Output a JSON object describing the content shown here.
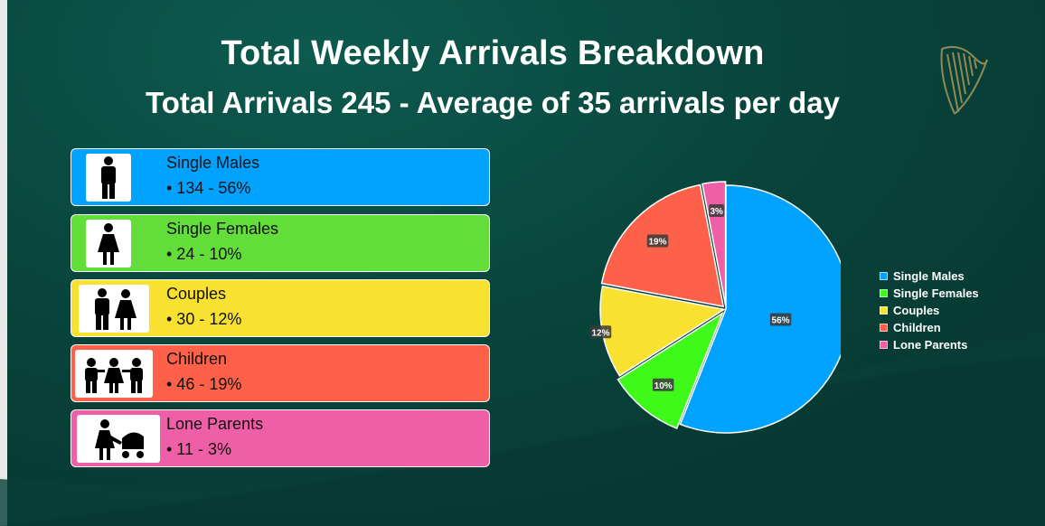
{
  "header": {
    "title": "Total Weekly Arrivals Breakdown",
    "subtitle": "Total Arrivals 245 - Average of 35 arrivals per day"
  },
  "categories": [
    {
      "label": "Single Males",
      "value": "• 134 - 56%",
      "color": "#00a2ff",
      "icon": "single-male-icon"
    },
    {
      "label": "Single Females",
      "value": "• 24 - 10%",
      "color": "#63dd3a",
      "icon": "single-female-icon"
    },
    {
      "label": "Couples",
      "value": "• 30 - 12%",
      "color": "#f8e131",
      "icon": "couple-icon"
    },
    {
      "label": "Children",
      "value": "• 46 - 19%",
      "color": "#fe6149",
      "icon": "children-icon"
    },
    {
      "label": "Lone Parents",
      "value": "• 11 - 3%",
      "color": "#ee5fa7",
      "icon": "lone-parent-icon"
    }
  ],
  "chart_data": {
    "type": "pie",
    "categories": [
      "Single Males",
      "Single Females",
      "Couples",
      "Children",
      "Lone Parents"
    ],
    "values": [
      56,
      10,
      12,
      19,
      3
    ],
    "data_labels": [
      "56%",
      "10%",
      "12%",
      "19%",
      "3%"
    ],
    "colors": [
      "#00a2ff",
      "#3ff91a",
      "#f8e131",
      "#fe6149",
      "#ee5fa7"
    ],
    "legend_position": "right",
    "start_angle": "top, clockwise"
  }
}
